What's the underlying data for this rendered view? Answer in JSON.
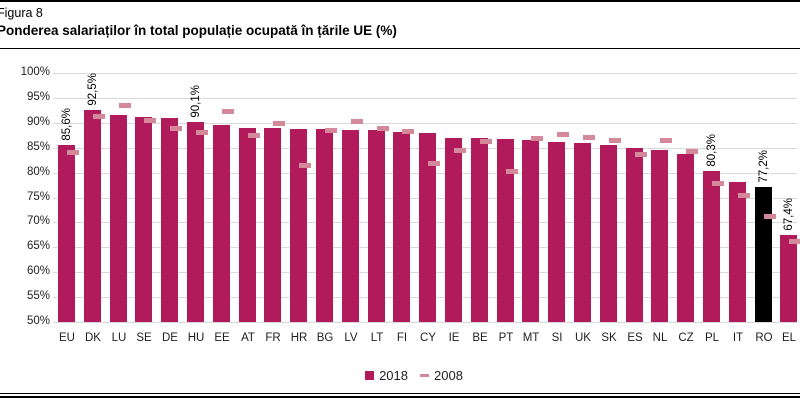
{
  "figure": {
    "label": "Figura 8",
    "title": "Ponderea salariaților în total populație ocupată în țările UE (%)"
  },
  "colors": {
    "bar_2018": "#B11A5B",
    "marker_2008": "#D4899B",
    "highlight_ro": "#000000",
    "gridline": "#D9D9D9"
  },
  "chart_data": {
    "type": "bar",
    "title": "Ponderea salariaților în total populație ocupată în țările UE (%)",
    "xlabel": "",
    "ylabel": "",
    "ylim": [
      50,
      100
    ],
    "ytick_step": 5,
    "ytick_labels": [
      "100%",
      "95%",
      "90%",
      "85%",
      "80%",
      "75%",
      "70%",
      "65%",
      "60%",
      "55%",
      "50%"
    ],
    "grid": "horizontal",
    "legend_position": "bottom-center",
    "categories": [
      "EU",
      "DK",
      "LU",
      "SE",
      "DE",
      "HU",
      "EE",
      "AT",
      "FR",
      "HR",
      "BG",
      "LV",
      "LT",
      "FI",
      "CY",
      "IE",
      "BE",
      "PT",
      "MT",
      "SI",
      "UK",
      "SK",
      "ES",
      "NL",
      "CZ",
      "PL",
      "IT",
      "RO",
      "EL"
    ],
    "series": [
      {
        "name": "2018",
        "style": "column",
        "values": [
          85.6,
          92.5,
          91.5,
          91.2,
          91.0,
          90.1,
          89.5,
          89.0,
          88.9,
          88.7,
          88.7,
          88.6,
          88.5,
          88.2,
          87.9,
          87.0,
          86.9,
          86.7,
          86.6,
          86.1,
          85.9,
          85.6,
          84.9,
          84.5,
          83.8,
          80.3,
          78.1,
          77.2,
          67.4
        ]
      },
      {
        "name": "2008",
        "style": "dash-marker",
        "values": [
          84.0,
          91.3,
          93.4,
          90.5,
          88.9,
          88.0,
          92.3,
          87.5,
          89.9,
          81.4,
          88.4,
          90.3,
          88.8,
          88.3,
          81.9,
          84.5,
          86.3,
          80.3,
          86.9,
          87.7,
          87.1,
          86.5,
          83.7,
          86.4,
          84.3,
          77.9,
          75.5,
          71.1,
          66.1
        ]
      }
    ],
    "highlight_category": "RO",
    "value_labels": [
      {
        "category": "EU",
        "label": "85,6%"
      },
      {
        "category": "DK",
        "label": "92,5%"
      },
      {
        "category": "HU",
        "label": "90,1%"
      },
      {
        "category": "PL",
        "label": "80,3%"
      },
      {
        "category": "RO",
        "label": "77,2%"
      },
      {
        "category": "EL",
        "label": "67,4%"
      }
    ]
  }
}
